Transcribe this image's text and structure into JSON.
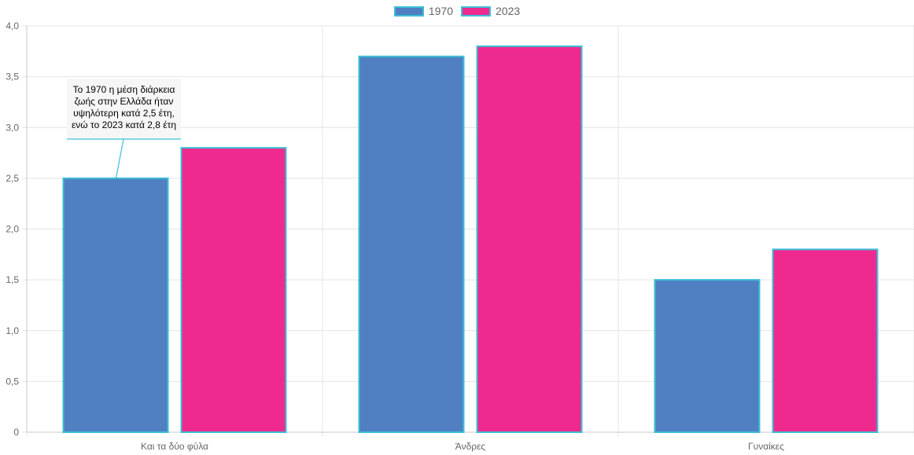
{
  "chart_data": {
    "type": "bar",
    "categories": [
      "Και τα δύο φύλα",
      "Άνδρες",
      "Γυναίκες"
    ],
    "series": [
      {
        "name": "1970",
        "values": [
          2.5,
          3.7,
          1.5
        ],
        "color": "#5080c1"
      },
      {
        "name": "2023",
        "values": [
          2.8,
          3.8,
          1.8
        ],
        "color": "#ee2a8e"
      }
    ],
    "ylim": [
      0,
      4.0
    ],
    "yticks": [
      "0",
      "0,5",
      "1,0",
      "1,5",
      "2,0",
      "2,5",
      "3,0",
      "3,5",
      "4,0"
    ],
    "bar_border_color": "#3bbfd6",
    "grid": true,
    "legend_position": "top",
    "annotation": {
      "lines": [
        "Το 1970 η μέση διάρκεια",
        "ζωής στην Ελλάδα ήταν",
        "υψηλότερη κατά 2,5 έτη,",
        "ενώ το 2023 κατά 2,8 έτη"
      ],
      "category": 0,
      "series": 0
    }
  }
}
